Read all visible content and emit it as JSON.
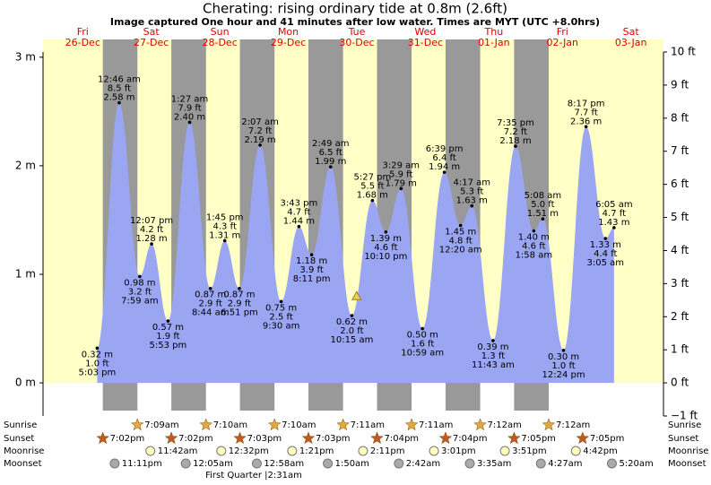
{
  "chart_data": {
    "type": "area",
    "title": "Cherating: rising  ordinary tide at 0.8m (2.6ft)",
    "subtitle": "Image captured One hour and 41 minutes after low water. Times are MYT (UTC +8.0hrs)",
    "days": [
      {
        "day": "Fri",
        "date": "26-Dec"
      },
      {
        "day": "Sat",
        "date": "27-Dec"
      },
      {
        "day": "Sun",
        "date": "28-Dec"
      },
      {
        "day": "Mon",
        "date": "29-Dec"
      },
      {
        "day": "Tue",
        "date": "30-Dec"
      },
      {
        "day": "Wed",
        "date": "31-Dec"
      },
      {
        "day": "Thu",
        "date": "01-Jan"
      },
      {
        "day": "Fri",
        "date": "02-Jan"
      },
      {
        "day": "Sat",
        "date": "03-Jan"
      }
    ],
    "xlim": [
      -1.9,
      215.4
    ],
    "x": [
      17.05,
      24.77,
      31.98,
      36.12,
      41.88,
      49.45,
      56.73,
      61.75,
      66.85,
      74.12,
      81.5,
      87.72,
      92.18,
      98.82,
      106.25,
      113.45,
      118.17,
      123.48,
      130.98,
      138.65,
      144.33,
      148.28,
      155.72,
      163.58,
      169.97,
      173.13,
      180.4,
      188.28,
      195.08,
      198.08
    ],
    "times": [
      "5:03 pm",
      "12:46 am",
      "7:59 am",
      "12:07 pm",
      "5:53 pm",
      "1:27 am",
      "8:44 am",
      "1:45 pm",
      "6:51 pm",
      "2:07 am",
      "9:30 am",
      "3:43 pm",
      "8:11 pm",
      "2:49 am",
      "10:15 am",
      "5:27 pm",
      "10:10 pm",
      "3:29 am",
      "10:59 am",
      "6:39 pm",
      "12:20 am",
      "4:17 am",
      "11:43 am",
      "7:35 pm",
      "1:58 am",
      "5:08 am",
      "12:24 pm",
      "8:17 pm",
      "3:05 am",
      "6:05 am"
    ],
    "values": [
      0.32,
      2.58,
      0.98,
      1.28,
      0.57,
      2.4,
      0.87,
      1.31,
      0.87,
      2.19,
      0.75,
      1.44,
      1.18,
      1.99,
      0.62,
      1.68,
      1.39,
      1.79,
      0.5,
      1.94,
      1.45,
      1.63,
      0.39,
      2.18,
      1.4,
      1.51,
      0.3,
      2.36,
      1.33,
      1.43
    ],
    "value_labels": [
      "0.32 m",
      "2.58 m",
      "0.98 m",
      "1.28 m",
      "0.57 m",
      "2.40 m",
      "0.87 m",
      "1.31 m",
      "0.87 m",
      "2.19 m",
      "0.75 m",
      "1.44 m",
      "1.18 m",
      "1.99 m",
      "0.62 m",
      "1.68 m",
      "1.39 m",
      "1.79 m",
      "0.50 m",
      "1.94 m",
      "1.45 m",
      "1.63 m",
      "0.39 m",
      "2.18 m",
      "1.40 m",
      "1.51 m",
      "0.30 m",
      "2.36 m",
      "1.33 m",
      "1.43 m"
    ],
    "ft_labels": [
      "1.0 ft",
      "8.5 ft",
      "3.2 ft",
      "4.2 ft",
      "1.9 ft",
      "7.9 ft",
      "2.9 ft",
      "4.3 ft",
      "2.9 ft",
      "7.2 ft",
      "2.5 ft",
      "4.7 ft",
      "3.9 ft",
      "6.5 ft",
      "2.0 ft",
      "5.5 ft",
      "4.6 ft",
      "5.9 ft",
      "1.6 ft",
      "6.4 ft",
      "4.8 ft",
      "5.3 ft",
      "1.3 ft",
      "7.2 ft",
      "4.6 ft",
      "5.0 ft",
      "1.0 ft",
      "7.7 ft",
      "4.4 ft",
      "4.7 ft"
    ],
    "color": "#9aa6f2",
    "ylim": [
      -0.3048,
      3.048
    ],
    "yticks": [
      {
        "value": 0,
        "label": "0 m"
      },
      {
        "value": 1,
        "label": "1 m"
      },
      {
        "value": 2,
        "label": "2 m"
      },
      {
        "value": 3,
        "label": "3 m"
      }
    ],
    "y2lim": [
      -1,
      10
    ],
    "y2ticks": [
      {
        "value": -1,
        "label": "−1 ft"
      },
      {
        "value": 0,
        "label": "0 ft"
      },
      {
        "value": 1,
        "label": "1 ft"
      },
      {
        "value": 2,
        "label": "2 ft"
      },
      {
        "value": 3,
        "label": "3 ft"
      },
      {
        "value": 4,
        "label": "4 ft"
      },
      {
        "value": 5,
        "label": "5 ft"
      },
      {
        "value": 6,
        "label": "6 ft"
      },
      {
        "value": 7,
        "label": "7 ft"
      },
      {
        "value": 8,
        "label": "8 ft"
      },
      {
        "value": 9,
        "label": "9 ft"
      },
      {
        "value": 10,
        "label": "10 ft"
      }
    ],
    "current": {
      "x": 107.93,
      "value": 0.8
    },
    "sunrise": {
      "label": "Sunrise",
      "x": [
        31.15,
        55.17,
        79.17,
        103.18,
        127.18,
        151.2,
        175.2
      ],
      "times": [
        "7:09am",
        "7:10am",
        "7:10am",
        "7:11am",
        "7:11am",
        "7:12am",
        "7:12am"
      ]
    },
    "sunset": {
      "label": "Sunset",
      "x": [
        19.03,
        43.03,
        67.05,
        91.05,
        115.07,
        139.07,
        163.08,
        187.08
      ],
      "times": [
        "7:02pm",
        "7:02pm",
        "7:03pm",
        "7:03pm",
        "7:04pm",
        "7:04pm",
        "7:05pm",
        "7:05pm"
      ]
    },
    "moonrise": {
      "label": "Moonrise",
      "x": [
        35.7,
        60.53,
        85.35,
        110.18,
        135.02,
        159.85,
        184.7
      ],
      "times": [
        "11:42am",
        "12:32pm",
        "1:21pm",
        "2:11pm",
        "3:01pm",
        "3:51pm",
        "4:42pm"
      ]
    },
    "moonset": {
      "label": "Moonset",
      "x": [
        23.18,
        48.08,
        72.97,
        97.83,
        122.7,
        147.58,
        172.45,
        197.33
      ],
      "times": [
        "11:11pm",
        "12:05am",
        "12:58am",
        "1:50am",
        "2:42am",
        "3:35am",
        "4:27am",
        "5:20am"
      ]
    },
    "moon_phase": "First Quarter |2:31am"
  }
}
